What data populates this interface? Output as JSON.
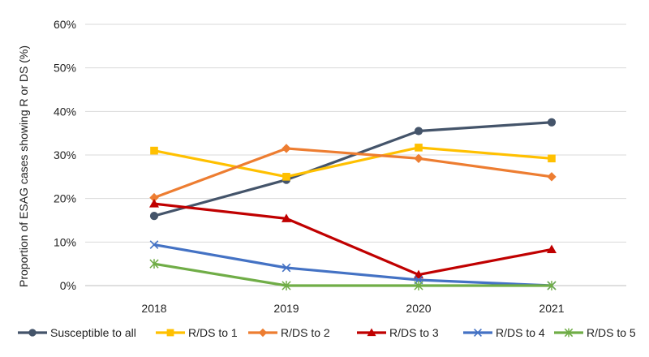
{
  "chart_data": {
    "type": "line",
    "title": "",
    "xlabel": "",
    "ylabel": "Proportion of ESAG cases showing R or DS (%)",
    "x": [
      "2018",
      "2019",
      "2020",
      "2021"
    ],
    "ylim": [
      0,
      60
    ],
    "ytick_labels": [
      "0%",
      "10%",
      "20%",
      "30%",
      "40%",
      "50%",
      "60%"
    ],
    "grid": true,
    "legend_position": "bottom",
    "series": [
      {
        "name": "Susceptible to all",
        "values": [
          16.0,
          24.3,
          35.5,
          37.5
        ],
        "color": "#44546a",
        "marker": "circle"
      },
      {
        "name": "R/DS to 1",
        "values": [
          31.0,
          25.0,
          31.7,
          29.2
        ],
        "color": "#ffc000",
        "marker": "square"
      },
      {
        "name": "R/DS to 2",
        "values": [
          20.2,
          31.5,
          29.2,
          25.0
        ],
        "color": "#ed7d31",
        "marker": "diamond"
      },
      {
        "name": "R/DS to 3",
        "values": [
          18.8,
          15.4,
          2.5,
          8.3
        ],
        "color": "#c00000",
        "marker": "triangle"
      },
      {
        "name": "R/DS to 4",
        "values": [
          9.4,
          4.1,
          1.3,
          0.0
        ],
        "color": "#4472c4",
        "marker": "x"
      },
      {
        "name": "R/DS to 5",
        "values": [
          5.0,
          0.0,
          0.0,
          0.0
        ],
        "color": "#70ad47",
        "marker": "star"
      }
    ]
  }
}
